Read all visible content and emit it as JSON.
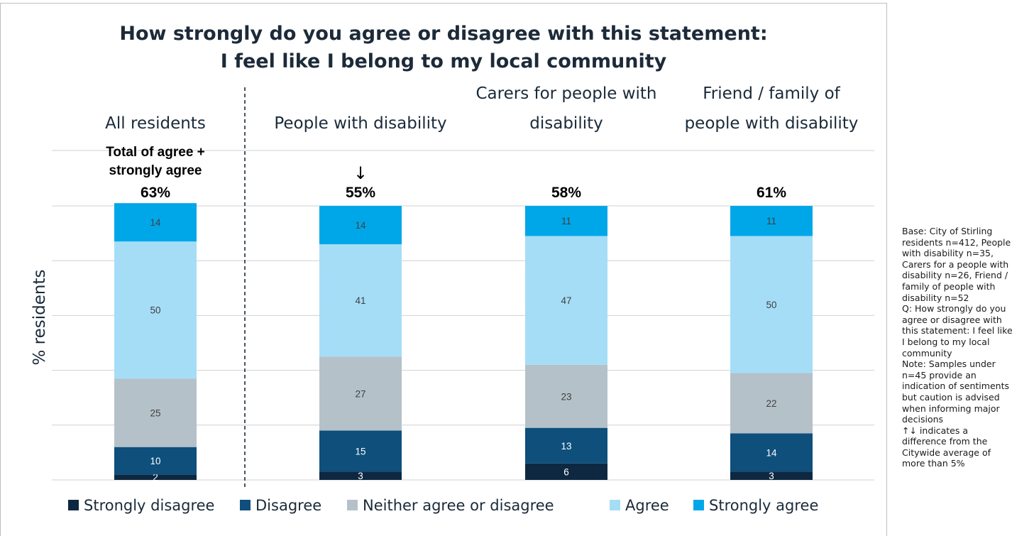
{
  "chart_data": {
    "type": "stacked-bar",
    "title_lines": [
      "How strongly do you agree or disagree with this statement:",
      "I feel like I belong to my local community"
    ],
    "ylabel": "% residents",
    "ylim": [
      0,
      100
    ],
    "grid": true,
    "legend_position": "bottom",
    "categories": [
      {
        "header_lines": [
          "All residents"
        ],
        "total": "63%",
        "arrow": ""
      },
      {
        "header_lines": [
          "People with disability"
        ],
        "total": "55%",
        "arrow": "↓"
      },
      {
        "header_lines": [
          "Carers for people with",
          "disability"
        ],
        "total": "58%",
        "arrow": ""
      },
      {
        "header_lines": [
          "Friend / family of",
          "people with disability"
        ],
        "total": "61%",
        "arrow": ""
      }
    ],
    "total_label_lines": [
      "Total of agree +",
      "strongly agree"
    ],
    "series": [
      {
        "name": "Strongly disagree",
        "color": "#0e2841",
        "label_color": "#ffffff",
        "values": [
          2,
          3,
          6,
          3
        ]
      },
      {
        "name": "Disagree",
        "color": "#0e4f7c",
        "label_color": "#ffffff",
        "values": [
          10,
          15,
          13,
          14
        ]
      },
      {
        "name": "Neither agree or disagree",
        "color": "#b4c1c9",
        "label_color": "#404040",
        "values": [
          25,
          27,
          23,
          22
        ]
      },
      {
        "name": "Agree",
        "color": "#a5ddf7",
        "label_color": "#404040",
        "values": [
          50,
          41,
          47,
          50
        ]
      },
      {
        "name": "Strongly agree",
        "color": "#00a7e8",
        "label_color": "#404040",
        "values": [
          14,
          14,
          11,
          11
        ]
      }
    ]
  },
  "side_note": [
    "Base: City of Stirling",
    "residents n=412, People",
    "with disability n=35,",
    "Carers for a people with",
    "disability n=26, Friend /",
    "family of people with",
    "disability n=52",
    "Q: How strongly do you",
    "agree or disagree with",
    "this statement: I feel like",
    "I belong to my local",
    "community",
    "Note: Samples under",
    "n=45 provide an",
    "indication of sentiments",
    "but caution is advised",
    "when informing major",
    "decisions",
    "↑↓ indicates a",
    "difference from the",
    "Citywide average of",
    "more than 5%"
  ]
}
